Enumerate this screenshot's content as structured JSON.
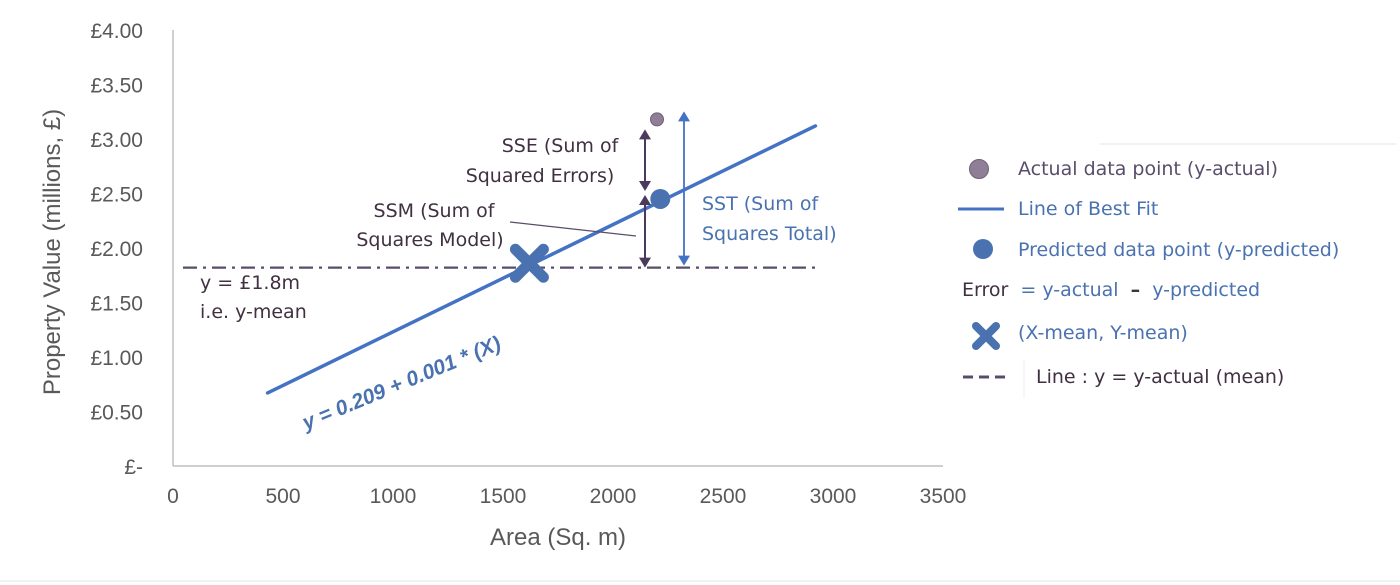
{
  "colors": {
    "line": "#4472c4",
    "marker": "#4a72b0",
    "actual_point": "#8e7f96",
    "mean_line": "#5a4d6b",
    "sse_arrow": "#4b3a5e",
    "sst_arrow": "#4472c4",
    "axis": "#bfbfbf",
    "text_dark": "#403040",
    "text_blue": "#4a72b0"
  },
  "chart_data": {
    "type": "line",
    "xlabel": "Area (Sq. m)",
    "ylabel": "Property Value (millions, £)",
    "xlim": [
      0,
      3500
    ],
    "ylim": [
      0,
      4
    ],
    "x_ticks": [
      "0",
      "500",
      "1000",
      "1500",
      "2000",
      "2500",
      "3000",
      "3500"
    ],
    "y_ticks": [
      "£-",
      "£0.50",
      "£1.00",
      "£1.50",
      "£2.00",
      "£2.50",
      "£3.00",
      "£3.50",
      "£4.00"
    ],
    "grid": false,
    "best_fit_line": {
      "x": [
        430,
        2920
      ],
      "y": [
        0.67,
        3.12
      ]
    },
    "mean_line_y": 1.82,
    "actual_point": {
      "x": 2200,
      "y": 3.18
    },
    "predicted_point": {
      "x": 2215,
      "y": 2.45
    },
    "mean_point": {
      "x": 1620,
      "y": 1.86
    },
    "equation": "y = 0.209 + 0.001 * (X)",
    "annotations": {
      "sse_line1": "SSE (Sum of",
      "sse_line2": "Squared Errors)",
      "ssm_line1": "SSM (Sum of",
      "ssm_line2": "Squares Model)",
      "sst_line1": "SST (Sum of",
      "sst_line2": "Squares Total)",
      "mean_label_line1": "y = £1.8m",
      "mean_label_line2": "i.e. y-mean"
    },
    "legend": {
      "placement": "right",
      "actual": "Actual data point (y-actual)",
      "best_fit": "Line of Best Fit",
      "predicted": "Predicted data point (y-predicted)",
      "error_label": "Error",
      "error_formula": "= y-actual",
      "error_dash": "–",
      "error_rest": "y-predicted",
      "mean_point": "(X-mean, Y-mean)",
      "mean_line": "Line : y = y-actual (mean)"
    }
  }
}
